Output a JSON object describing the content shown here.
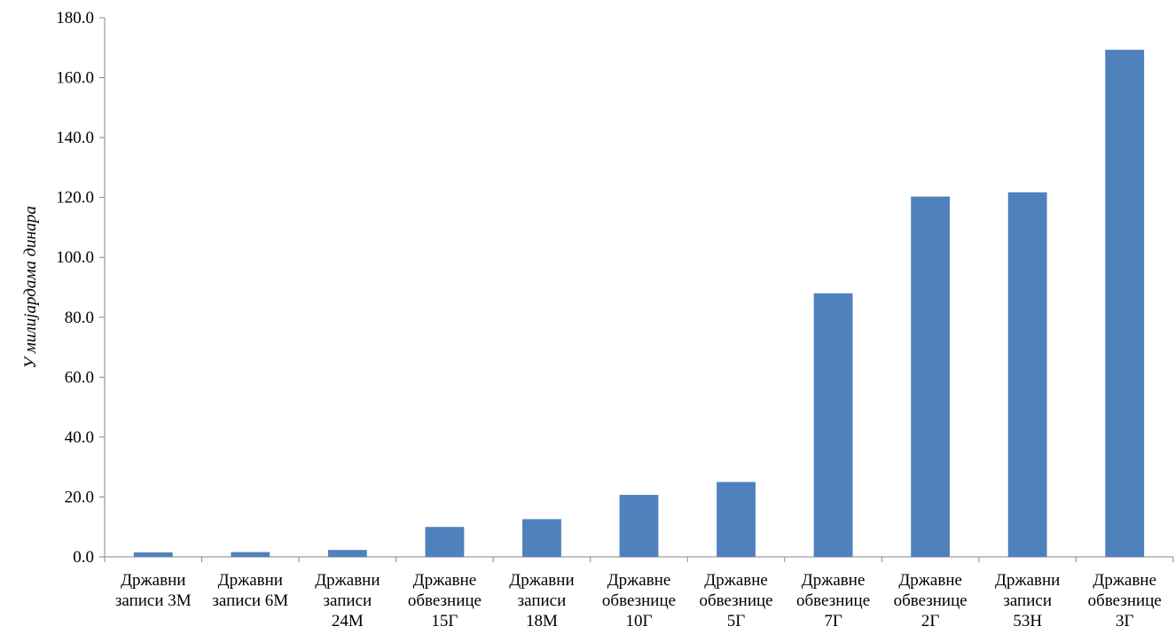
{
  "chart_data": {
    "type": "bar",
    "ylabel": "У милијардама динара",
    "xlabel": "",
    "ylim": [
      0,
      180
    ],
    "yticks": [
      "0.0",
      "20.0",
      "40.0",
      "60.0",
      "80.0",
      "100.0",
      "120.0",
      "140.0",
      "160.0",
      "180.0"
    ],
    "categories": [
      [
        "Државни",
        "записи 3М"
      ],
      [
        "Државни",
        "записи 6М"
      ],
      [
        "Државни",
        "записи",
        "24М"
      ],
      [
        "Државне",
        "обвезнице",
        "15Г"
      ],
      [
        "Државни",
        "записи",
        "18М"
      ],
      [
        "Државне",
        "обвезнице",
        "10Г"
      ],
      [
        "Државне",
        "обвезнице",
        "5Г"
      ],
      [
        "Државне",
        "обвезнице",
        "7Г"
      ],
      [
        "Државне",
        "обвезнице",
        "2Г"
      ],
      [
        "Државни",
        "записи",
        "53Н"
      ],
      [
        "Државне",
        "обвезнице",
        "3Г"
      ]
    ],
    "values": [
      1.5,
      1.6,
      2.3,
      10.0,
      12.6,
      20.7,
      25.0,
      88.0,
      120.3,
      121.7,
      169.3
    ],
    "bar_color": "#4f81bd",
    "grid": false,
    "legend": "none"
  }
}
